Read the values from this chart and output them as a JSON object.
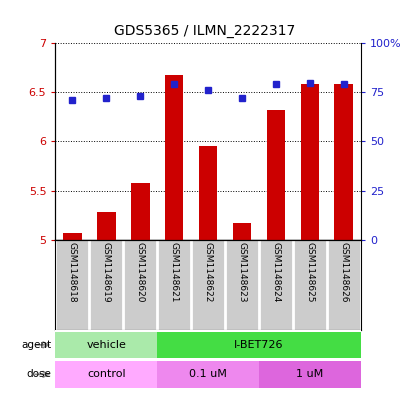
{
  "title": "GDS5365 / ILMN_2222317",
  "samples": [
    "GSM1148618",
    "GSM1148619",
    "GSM1148620",
    "GSM1148621",
    "GSM1148622",
    "GSM1148623",
    "GSM1148624",
    "GSM1148625",
    "GSM1148626"
  ],
  "transformed_count": [
    5.07,
    5.28,
    5.58,
    6.68,
    5.95,
    5.17,
    6.32,
    6.59,
    6.59
  ],
  "percentile_rank": [
    71,
    72,
    73,
    79,
    76,
    72,
    79,
    80,
    79
  ],
  "ylim": [
    5.0,
    7.0
  ],
  "yticks": [
    5.0,
    5.5,
    6.0,
    6.5,
    7.0
  ],
  "right_yticks": [
    0,
    25,
    50,
    75,
    100
  ],
  "right_ylim": [
    0,
    100
  ],
  "bar_color": "#cc0000",
  "dot_color": "#2222cc",
  "agent_labels": [
    {
      "text": "vehicle",
      "start": 0,
      "end": 3,
      "color": "#aaeaaa"
    },
    {
      "text": "I-BET726",
      "start": 3,
      "end": 9,
      "color": "#44dd44"
    }
  ],
  "dose_labels": [
    {
      "text": "control",
      "start": 0,
      "end": 3,
      "color": "#ffaaff"
    },
    {
      "text": "0.1 uM",
      "start": 3,
      "end": 6,
      "color": "#ee88ee"
    },
    {
      "text": "1 uM",
      "start": 6,
      "end": 9,
      "color": "#dd66dd"
    }
  ],
  "legend_bar_color": "#cc0000",
  "legend_dot_color": "#2222cc",
  "background_color": "#ffffff",
  "panel_bg": "#cccccc"
}
